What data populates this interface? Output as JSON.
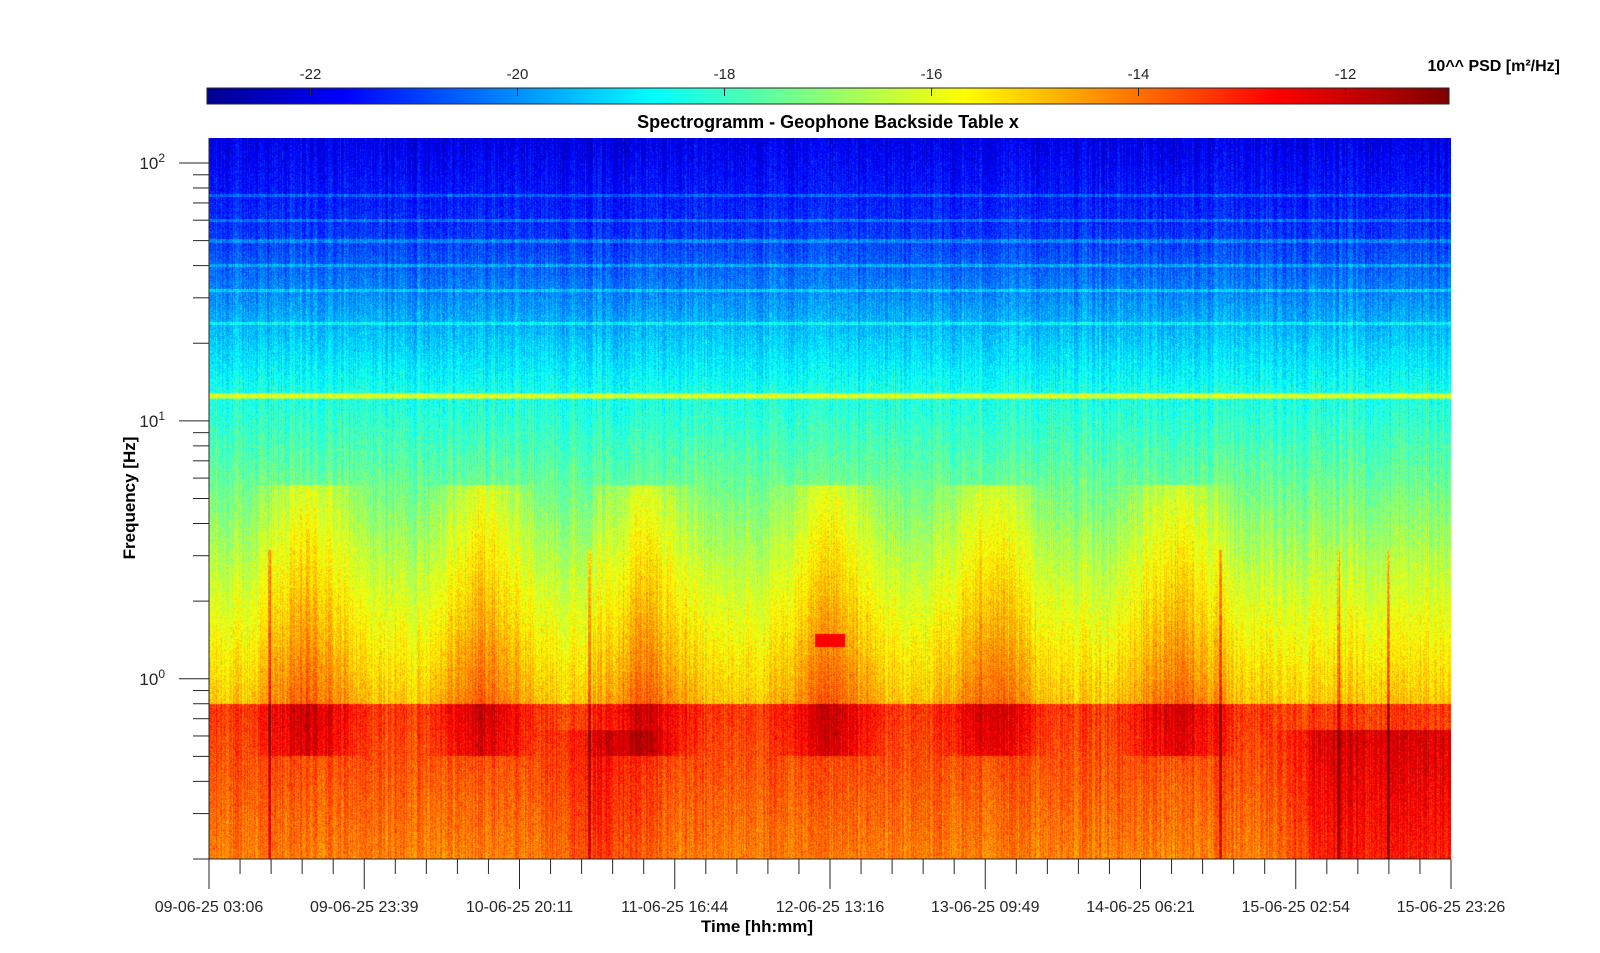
{
  "chart_data": {
    "type": "heatmap",
    "title": "Spectrogramm - Geophone Backside Table x",
    "xlabel": "Time [hh:mm]",
    "ylabel": "Frequency [Hz]",
    "y_scale": "log",
    "ylim": [
      0.2,
      125
    ],
    "y_major_ticks": [
      {
        "value": 1,
        "base": "10",
        "exp": "0"
      },
      {
        "value": 10,
        "base": "10",
        "exp": "1"
      },
      {
        "value": 100,
        "base": "10",
        "exp": "2"
      }
    ],
    "x_tick_labels": [
      "09-06-25 03:06",
      "09-06-25 23:39",
      "10-06-25 20:11",
      "11-06-25 16:44",
      "12-06-25 13:16",
      "13-06-25 09:49",
      "14-06-25 06:21",
      "15-06-25 02:54",
      "15-06-25 23:26"
    ],
    "x_minor_per_major": 5,
    "colorbar": {
      "label": "10^^ PSD [m²/Hz]",
      "range": [
        -23,
        -11
      ],
      "ticks": [
        -22,
        -20,
        -18,
        -16,
        -14,
        -12
      ],
      "colormap": "jet"
    },
    "features": {
      "daily_activity_bands": [
        {
          "time_frac": 0.08,
          "level": -14.5
        },
        {
          "time_frac": 0.22,
          "level": -14.8
        },
        {
          "time_frac": 0.35,
          "level": -14.6
        },
        {
          "time_frac": 0.5,
          "level": -14.5
        },
        {
          "time_frac": 0.63,
          "level": -14.5
        },
        {
          "time_frac": 0.78,
          "level": -14.7
        }
      ],
      "spikes_time_frac": [
        0.048,
        0.306,
        0.815,
        0.91,
        0.95
      ],
      "red_blob": {
        "time_frac": 0.5,
        "freq_hz": 1.4,
        "level": -12.5
      },
      "harmonic_lines_hz": [
        12.5,
        24,
        32,
        40,
        50,
        60,
        75
      ]
    }
  }
}
